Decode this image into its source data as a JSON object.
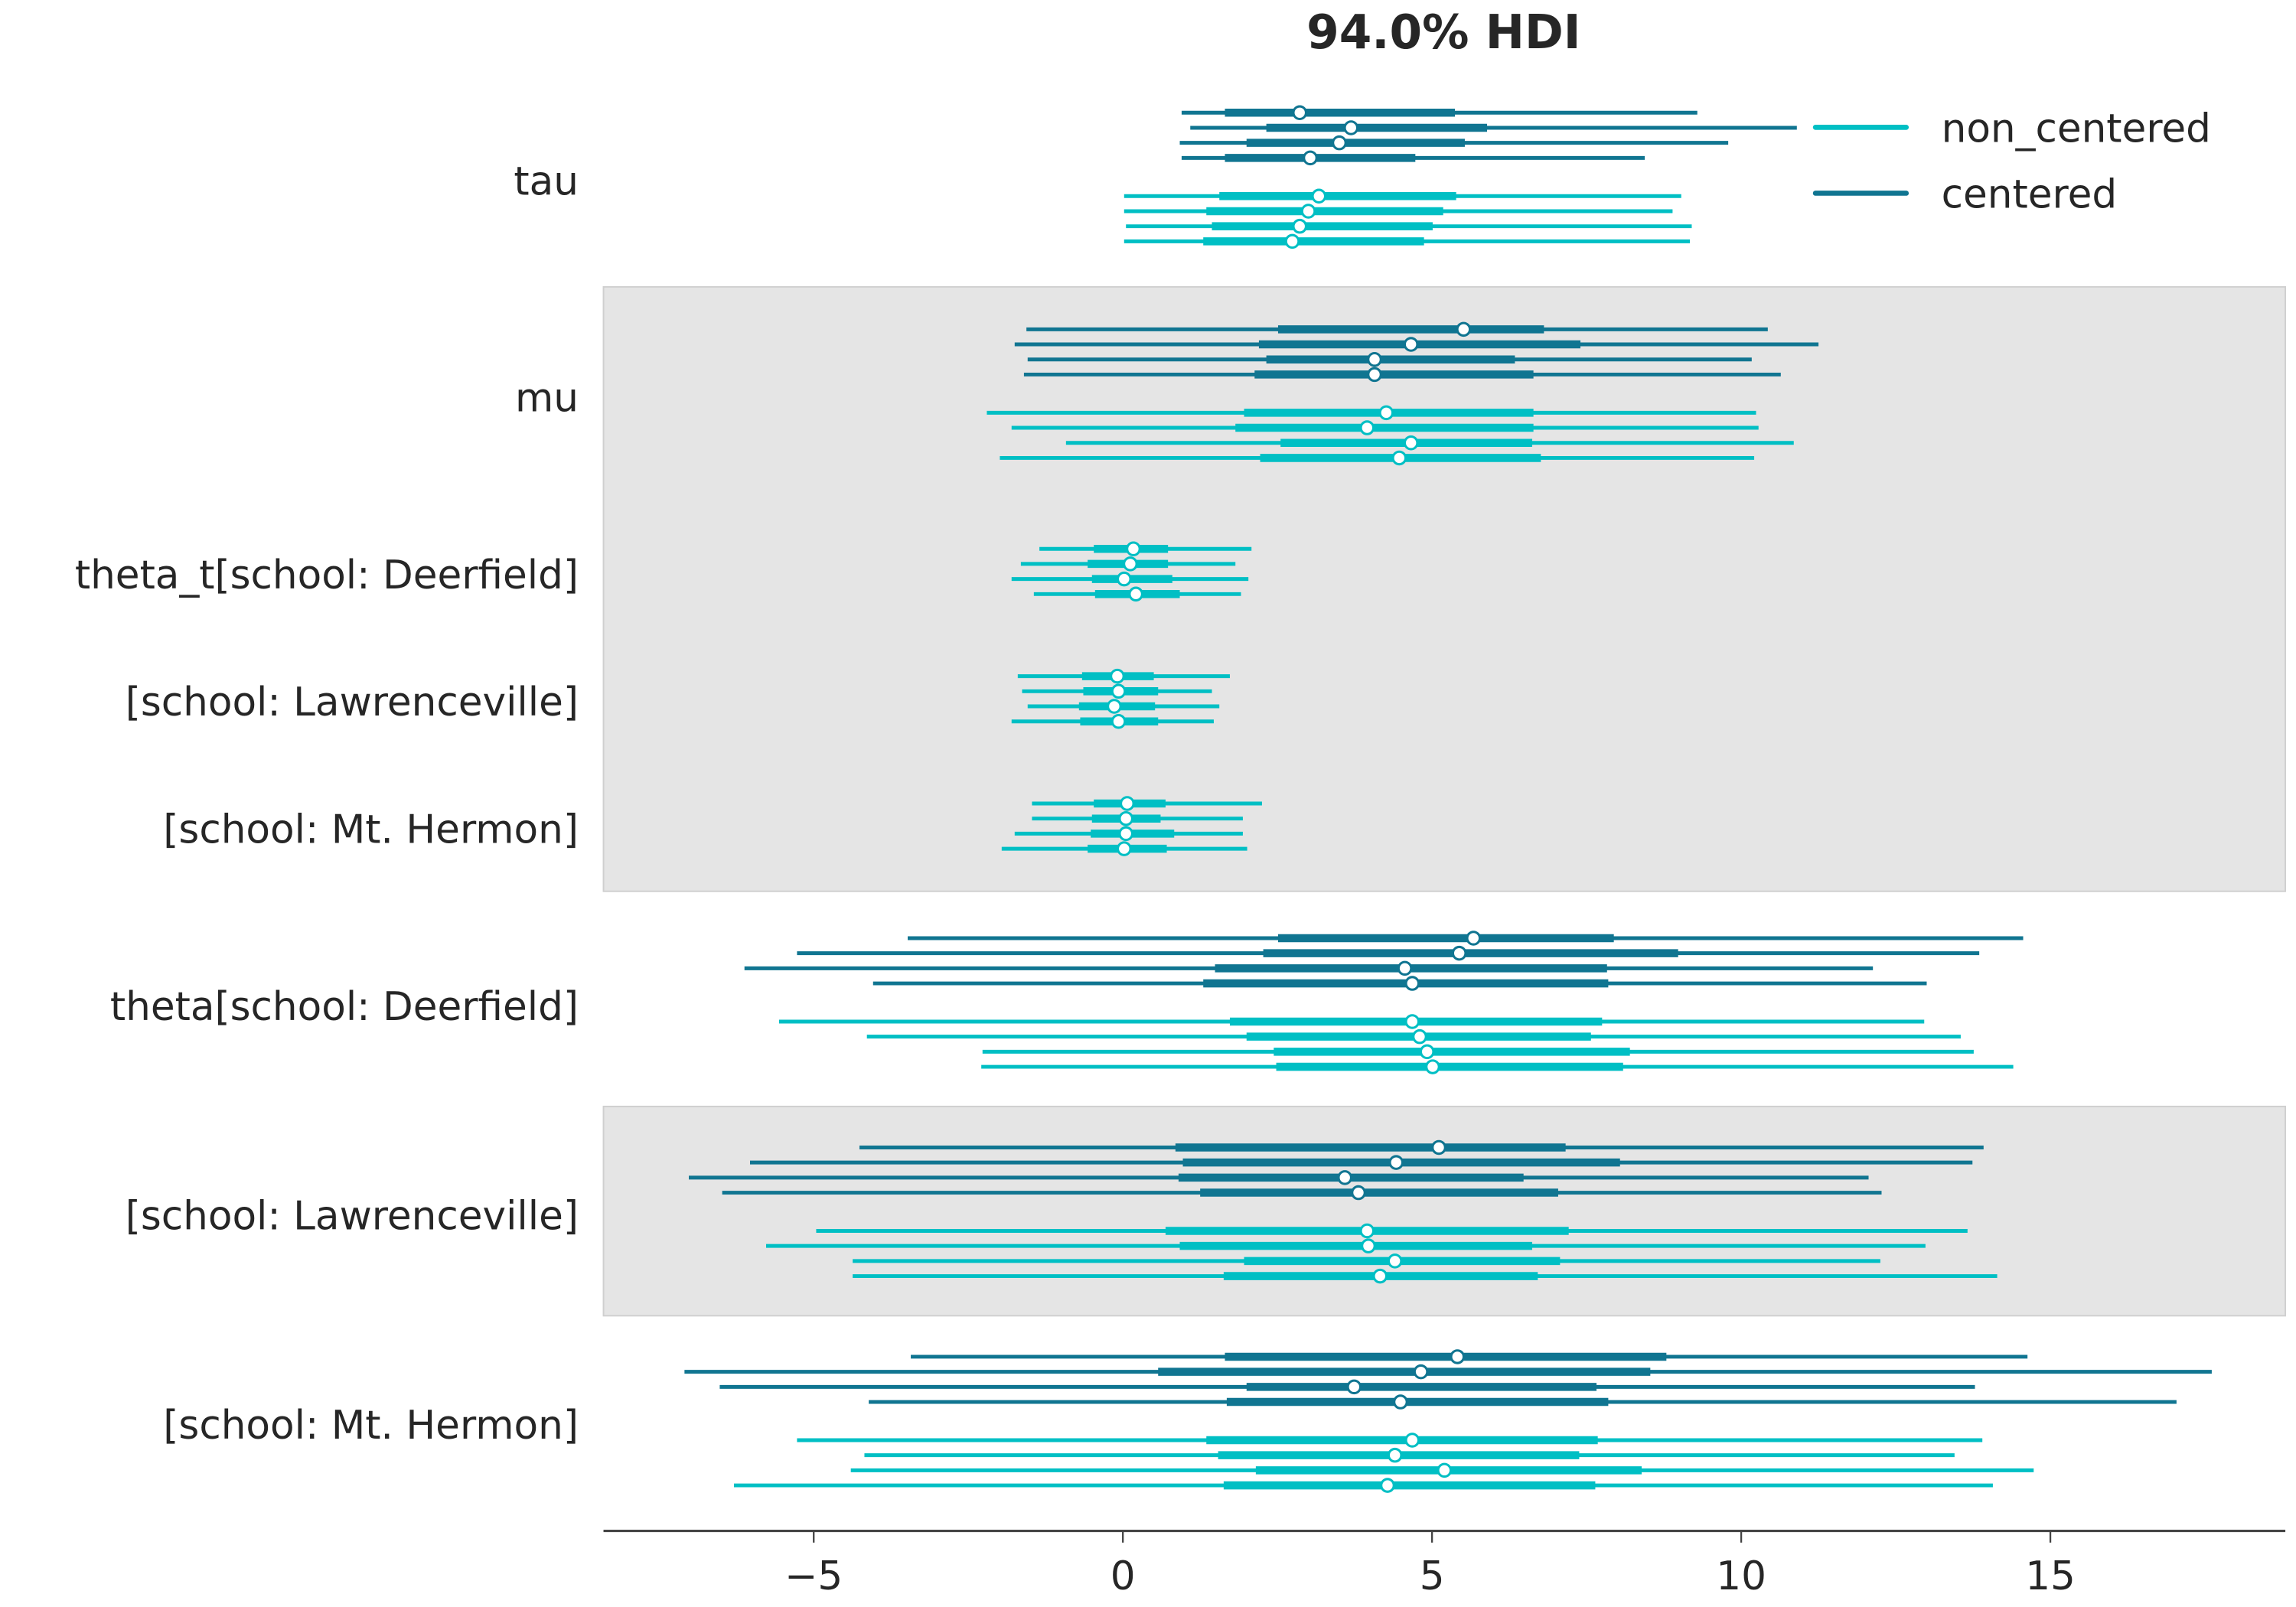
{
  "chart_data": {
    "type": "forest",
    "title": "94.0% HDI",
    "interval_note": "thin line = 94% HDI, thick line = interquartile range, dot = median",
    "xticks": [
      -5,
      0,
      5,
      10,
      15
    ],
    "xlim": [
      -8.4,
      18.8
    ],
    "legend": {
      "placement": "top-right",
      "entries": [
        "non_centered",
        "centered"
      ]
    },
    "colors": {
      "centered": "#107591",
      "non_centered": "#00bfc4",
      "shade": "#e5e5e5"
    },
    "rows": [
      {
        "label": "tau",
        "shaded": false,
        "centered": [
          [
            0.95,
            1.65,
            2.86,
            5.37,
            9.29
          ],
          [
            1.09,
            2.32,
            3.69,
            5.89,
            10.9
          ],
          [
            0.92,
            2.0,
            3.5,
            5.53,
            9.79
          ],
          [
            0.95,
            1.65,
            3.03,
            4.73,
            8.44
          ]
        ],
        "non_centered": [
          [
            0.02,
            1.56,
            3.17,
            5.39,
            9.03
          ],
          [
            0.02,
            1.35,
            3.0,
            5.18,
            8.89
          ],
          [
            0.05,
            1.44,
            2.86,
            5.01,
            9.2
          ],
          [
            0.02,
            1.3,
            2.74,
            4.87,
            9.17
          ]
        ]
      },
      {
        "label": "mu",
        "shaded": true,
        "centered": [
          [
            -1.56,
            2.51,
            5.51,
            6.81,
            10.43
          ],
          [
            -1.75,
            2.2,
            4.66,
            7.4,
            11.25
          ],
          [
            -1.54,
            2.32,
            4.07,
            6.34,
            10.17
          ],
          [
            -1.6,
            2.13,
            4.07,
            6.64,
            10.64
          ]
        ],
        "non_centered": [
          [
            -2.2,
            1.96,
            4.26,
            6.64,
            10.24
          ],
          [
            -1.8,
            1.82,
            3.95,
            6.64,
            10.28
          ],
          [
            -0.92,
            2.55,
            4.66,
            6.62,
            10.85
          ],
          [
            -1.99,
            2.22,
            4.47,
            6.76,
            10.21
          ]
        ]
      },
      {
        "label": "theta_t[school: Deerfield]",
        "shaded": true,
        "non_centered": [
          [
            -1.35,
            -0.47,
            0.17,
            0.73,
            2.08
          ],
          [
            -1.65,
            -0.57,
            0.12,
            0.73,
            1.82
          ],
          [
            -1.8,
            -0.5,
            0.02,
            0.8,
            2.03
          ],
          [
            -1.44,
            -0.45,
            0.21,
            0.92,
            1.91
          ]
        ]
      },
      {
        "label": "[school: Lawrenceville]",
        "shaded": true,
        "non_centered": [
          [
            -1.7,
            -0.66,
            -0.09,
            0.5,
            1.73
          ],
          [
            -1.63,
            -0.64,
            -0.07,
            0.57,
            1.44
          ],
          [
            -1.54,
            -0.71,
            -0.14,
            0.52,
            1.56
          ],
          [
            -1.8,
            -0.69,
            -0.07,
            0.57,
            1.47
          ]
        ]
      },
      {
        "label": "[school: Mt. Hermon]",
        "shaded": true,
        "non_centered": [
          [
            -1.47,
            -0.47,
            0.07,
            0.69,
            2.25
          ],
          [
            -1.47,
            -0.5,
            0.05,
            0.61,
            1.94
          ],
          [
            -1.75,
            -0.52,
            0.05,
            0.83,
            1.94
          ],
          [
            -1.96,
            -0.57,
            0.02,
            0.71,
            2.01
          ]
        ]
      },
      {
        "label": "theta[school: Deerfield]",
        "shaded": false,
        "centered": [
          [
            -3.48,
            2.51,
            5.67,
            7.94,
            14.56
          ],
          [
            -5.27,
            2.27,
            5.44,
            8.98,
            13.85
          ],
          [
            -6.12,
            1.49,
            4.56,
            7.83,
            12.13
          ],
          [
            -4.04,
            1.3,
            4.68,
            7.85,
            13.0
          ]
        ],
        "non_centered": [
          [
            -5.56,
            1.73,
            4.68,
            7.75,
            12.96
          ],
          [
            -4.14,
            2.0,
            4.8,
            7.57,
            13.55
          ],
          [
            -2.27,
            2.44,
            4.92,
            8.2,
            13.76
          ],
          [
            -2.29,
            2.48,
            5.01,
            8.09,
            14.4
          ]
        ]
      },
      {
        "label": "[school: Lawrenceville]",
        "shaded": true,
        "centered": [
          [
            -4.26,
            0.85,
            5.11,
            7.16,
            13.92
          ],
          [
            -6.03,
            0.97,
            4.42,
            8.04,
            13.74
          ],
          [
            -7.02,
            0.9,
            3.59,
            6.48,
            12.06
          ],
          [
            -6.48,
            1.25,
            3.81,
            7.04,
            12.27
          ]
        ],
        "non_centered": [
          [
            -4.96,
            0.69,
            3.95,
            7.21,
            13.66
          ],
          [
            -5.77,
            0.92,
            3.97,
            6.62,
            12.98
          ],
          [
            -4.37,
            1.96,
            4.4,
            7.07,
            12.25
          ],
          [
            -4.37,
            1.63,
            4.16,
            6.71,
            14.14
          ]
        ]
      },
      {
        "label": "[school: Mt. Hermon]",
        "shaded": false,
        "centered": [
          [
            -3.43,
            1.65,
            5.41,
            8.79,
            14.63
          ],
          [
            -7.09,
            0.57,
            4.82,
            8.53,
            17.61
          ],
          [
            -6.52,
            2.0,
            3.74,
            7.66,
            13.78
          ],
          [
            -4.11,
            1.68,
            4.49,
            7.85,
            17.04
          ]
        ],
        "non_centered": [
          [
            -5.27,
            1.35,
            4.68,
            7.68,
            13.9
          ],
          [
            -4.18,
            1.54,
            4.4,
            7.38,
            13.45
          ],
          [
            -4.4,
            2.15,
            5.2,
            8.39,
            14.73
          ],
          [
            -6.29,
            1.63,
            4.28,
            7.64,
            14.07
          ]
        ]
      }
    ]
  }
}
